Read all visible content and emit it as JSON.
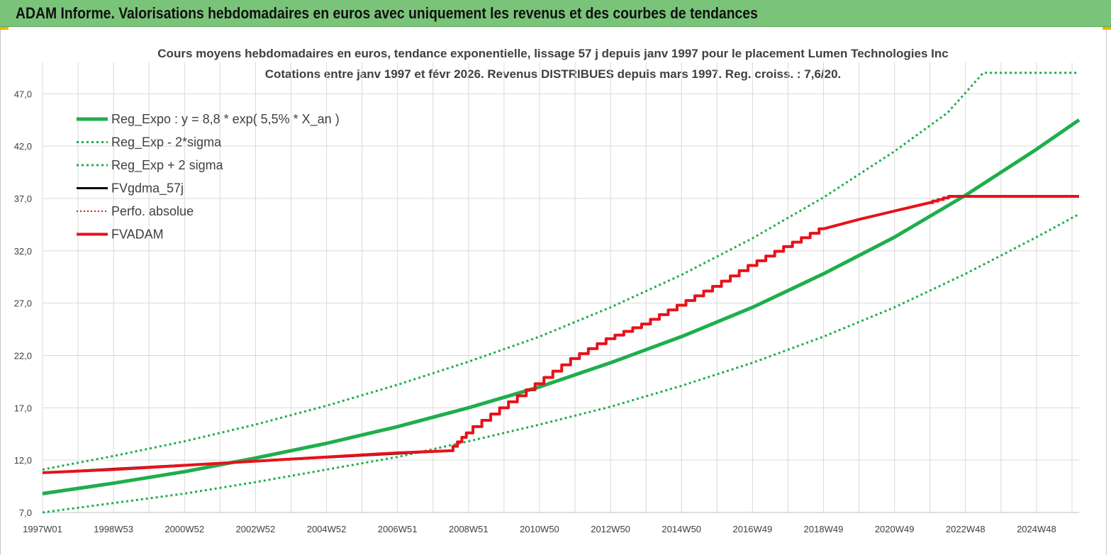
{
  "header": {
    "title": "ADAM Informe. Valorisations hebdomadaires en euros avec uniquement les revenus et des courbes de tendances"
  },
  "colors": {
    "header_bg": "#7ac47a",
    "reg_green": "#1fae4c",
    "fvadam_red": "#e8111a",
    "fvgdma_black": "#000000",
    "grid": "#d9d9d9"
  },
  "chart_data": {
    "type": "line",
    "title_line1": "Cours moyens hebdomadaires en euros, tendance exponentielle, lissage 57 j depuis janv 1997 pour le placement Lumen Technologies Inc",
    "title_line2": "Cotations entre janv 1997 et févr 2026. Revenus DISTRIBUES depuis mars 1997. Reg. croiss. : 7,6/20.",
    "x_tick_labels": [
      "1997W01",
      "1998W53",
      "2000W52",
      "2002W52",
      "2004W52",
      "2006W51",
      "2008W51",
      "2010W50",
      "2012W50",
      "2014W50",
      "2016W49",
      "2018W49",
      "2020W49",
      "2022W48",
      "2024W48"
    ],
    "x_tick_years": [
      1997.0,
      1999.0,
      2001.0,
      2003.0,
      2005.0,
      2007.0,
      2009.0,
      2011.0,
      2013.0,
      2015.0,
      2017.0,
      2019.0,
      2021.0,
      2023.0,
      2025.0
    ],
    "xlim": [
      1997.0,
      2026.2
    ],
    "ylim": [
      7.0,
      50.0
    ],
    "y_ticks": [
      7.0,
      12.0,
      17.0,
      22.0,
      27.0,
      32.0,
      37.0,
      42.0,
      47.0
    ],
    "y_tick_labels": [
      "7,0",
      "12,0",
      "17,0",
      "22,0",
      "27,0",
      "32,0",
      "37,0",
      "42,0",
      "47,0"
    ],
    "grid": true,
    "legend_position": "top-left",
    "series": [
      {
        "name": "Reg_Expo : y = 8,8 * exp( 5,5% *  X_an )",
        "style": "solid-green",
        "x": [
          1997,
          1999,
          2001,
          2003,
          2005,
          2007,
          2009,
          2011,
          2013,
          2015,
          2017,
          2019,
          2021,
          2023,
          2025,
          2026.2
        ],
        "y": [
          8.8,
          9.8,
          10.9,
          12.2,
          13.6,
          15.2,
          17.0,
          19.0,
          21.3,
          23.8,
          26.6,
          29.8,
          33.3,
          37.3,
          41.7,
          44.5
        ]
      },
      {
        "name": "Reg_Exp - 2*sigma",
        "style": "dotted-green",
        "x": [
          1997,
          1999,
          2001,
          2003,
          2005,
          2007,
          2009,
          2011,
          2013,
          2015,
          2017,
          2019,
          2021,
          2023,
          2025,
          2026.2
        ],
        "y": [
          7.0,
          7.9,
          8.8,
          9.9,
          11.1,
          12.3,
          13.8,
          15.4,
          17.1,
          19.1,
          21.3,
          23.8,
          26.6,
          29.8,
          33.3,
          35.5
        ]
      },
      {
        "name": "Reg_Exp + 2 sigma",
        "style": "dotted-green",
        "x": [
          1997,
          1999,
          2001,
          2003,
          2005,
          2007,
          2009,
          2011,
          2013,
          2015,
          2017,
          2019,
          2021,
          2022.5,
          2023.5,
          2026.2
        ],
        "y": [
          11.1,
          12.4,
          13.8,
          15.4,
          17.2,
          19.2,
          21.4,
          23.8,
          26.6,
          29.7,
          33.2,
          37.1,
          41.5,
          45.2,
          49.0,
          49.0
        ]
      },
      {
        "name": "FVgdma_57j",
        "style": "solid-black",
        "x": [
          1997,
          2008.5
        ],
        "y": [
          10.8,
          12.9
        ]
      },
      {
        "name": "Perfo. absolue",
        "style": "dotted-red",
        "x": [],
        "y": []
      },
      {
        "name": "FVADAM",
        "style": "solid-red",
        "x": [
          1997.0,
          1999.0,
          2001.0,
          2003.0,
          2005.0,
          2007.0,
          2008.5,
          2009.0,
          2010.0,
          2011.0,
          2012.0,
          2013.0,
          2014.0,
          2015.0,
          2016.0,
          2017.0,
          2018.0,
          2019.0,
          2020.0,
          2021.0,
          2022.0,
          2022.6,
          2026.2
        ],
        "y": [
          10.8,
          11.1,
          11.5,
          11.9,
          12.3,
          12.7,
          12.9,
          14.6,
          17.0,
          19.3,
          21.7,
          23.6,
          25.0,
          26.8,
          28.6,
          30.6,
          32.4,
          34.1,
          35.0,
          35.8,
          36.6,
          37.2,
          37.2
        ]
      }
    ]
  }
}
